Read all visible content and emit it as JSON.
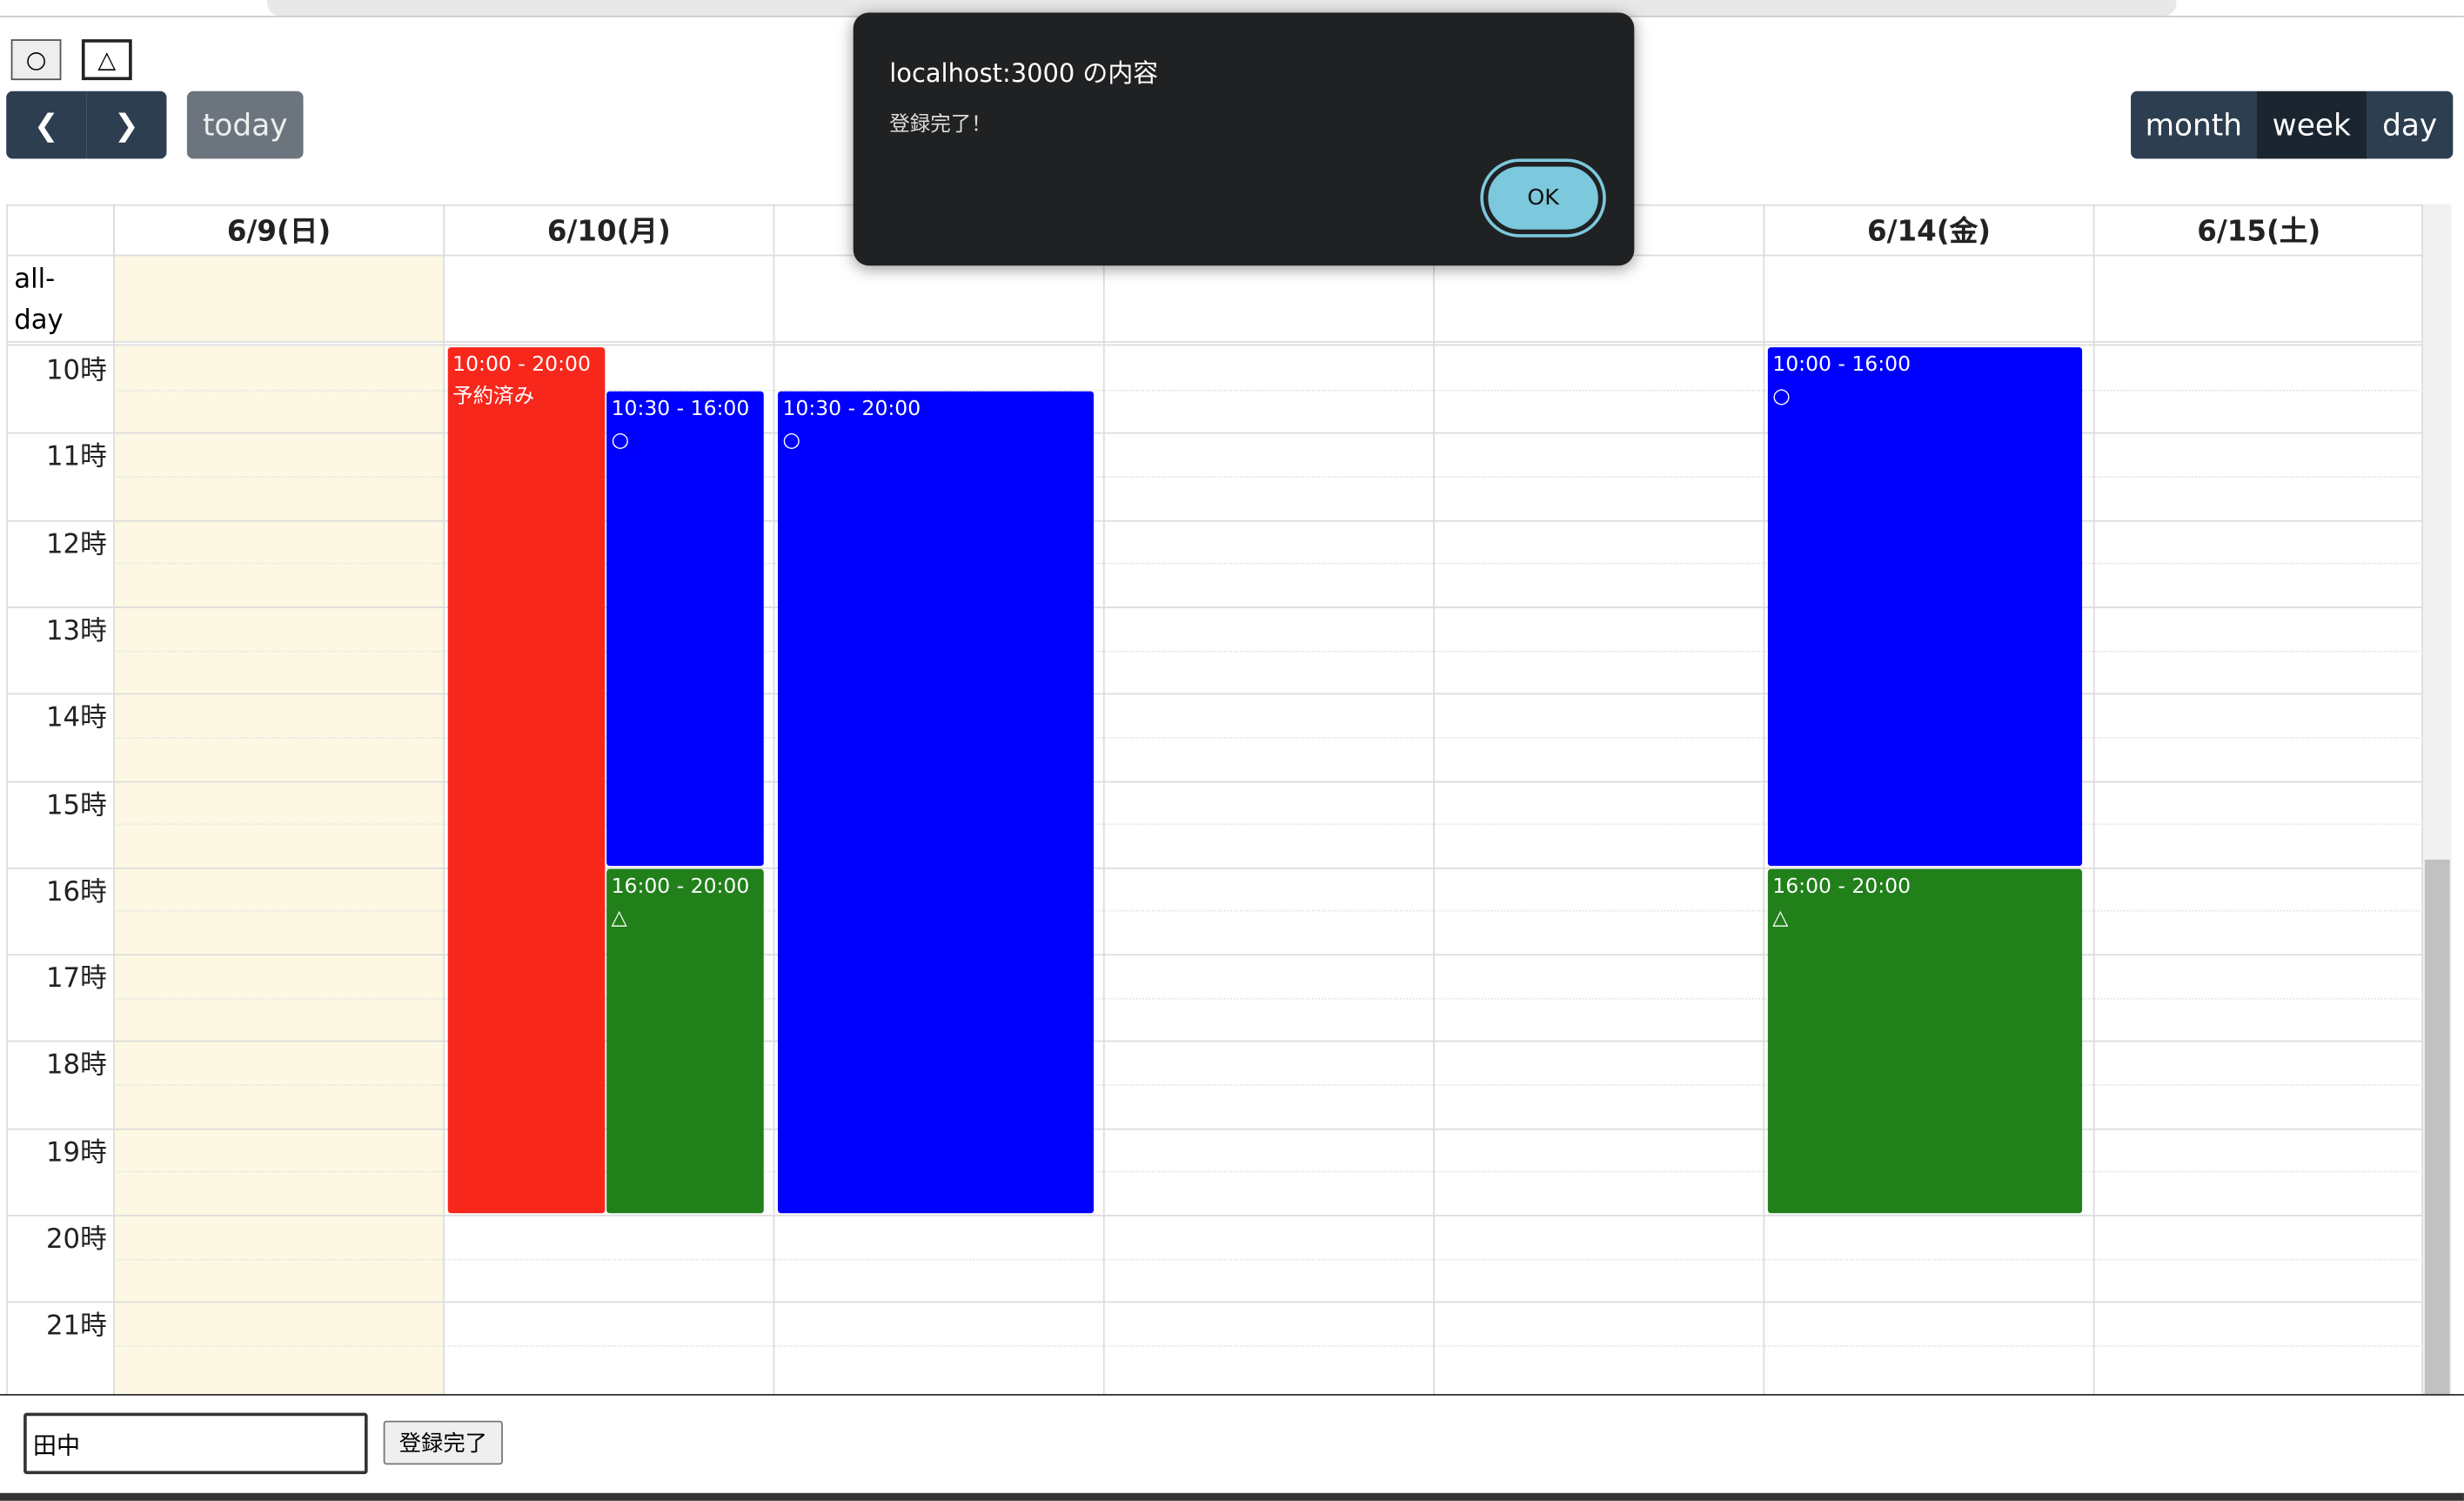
{
  "toolbar": {
    "symbols": [
      "○",
      "△"
    ],
    "today": "today",
    "views": [
      "month",
      "week",
      "day"
    ]
  },
  "headers": [
    "6/9(日)",
    "6/10(月)",
    "6/14(金)",
    "6/15(土)"
  ],
  "all_day": "all-day",
  "hours": [
    "10時",
    "11時",
    "12時",
    "13時",
    "14時",
    "15時",
    "16時",
    "17時",
    "18時",
    "19時",
    "20時",
    "21時"
  ],
  "events": [
    {
      "time": "10:00 - 20:00",
      "label": "予約済み",
      "color": "#f8271c"
    },
    {
      "time": "10:30 - 16:00",
      "label": "○",
      "color": "#0000ff"
    },
    {
      "time": "16:00 - 20:00",
      "label": "△",
      "color": "#21801a"
    },
    {
      "time": "10:30 - 20:00",
      "label": "○",
      "color": "#0000ff"
    },
    {
      "time": "10:00 - 16:00",
      "label": "○",
      "color": "#0000ff"
    },
    {
      "time": "16:00 - 20:00",
      "label": "△",
      "color": "#21801a"
    }
  ],
  "dialog": {
    "title": "localhost:3000 の内容",
    "message": "登録完了！",
    "ok": "OK"
  },
  "form": {
    "name": "田中",
    "submit": "登録完了"
  }
}
